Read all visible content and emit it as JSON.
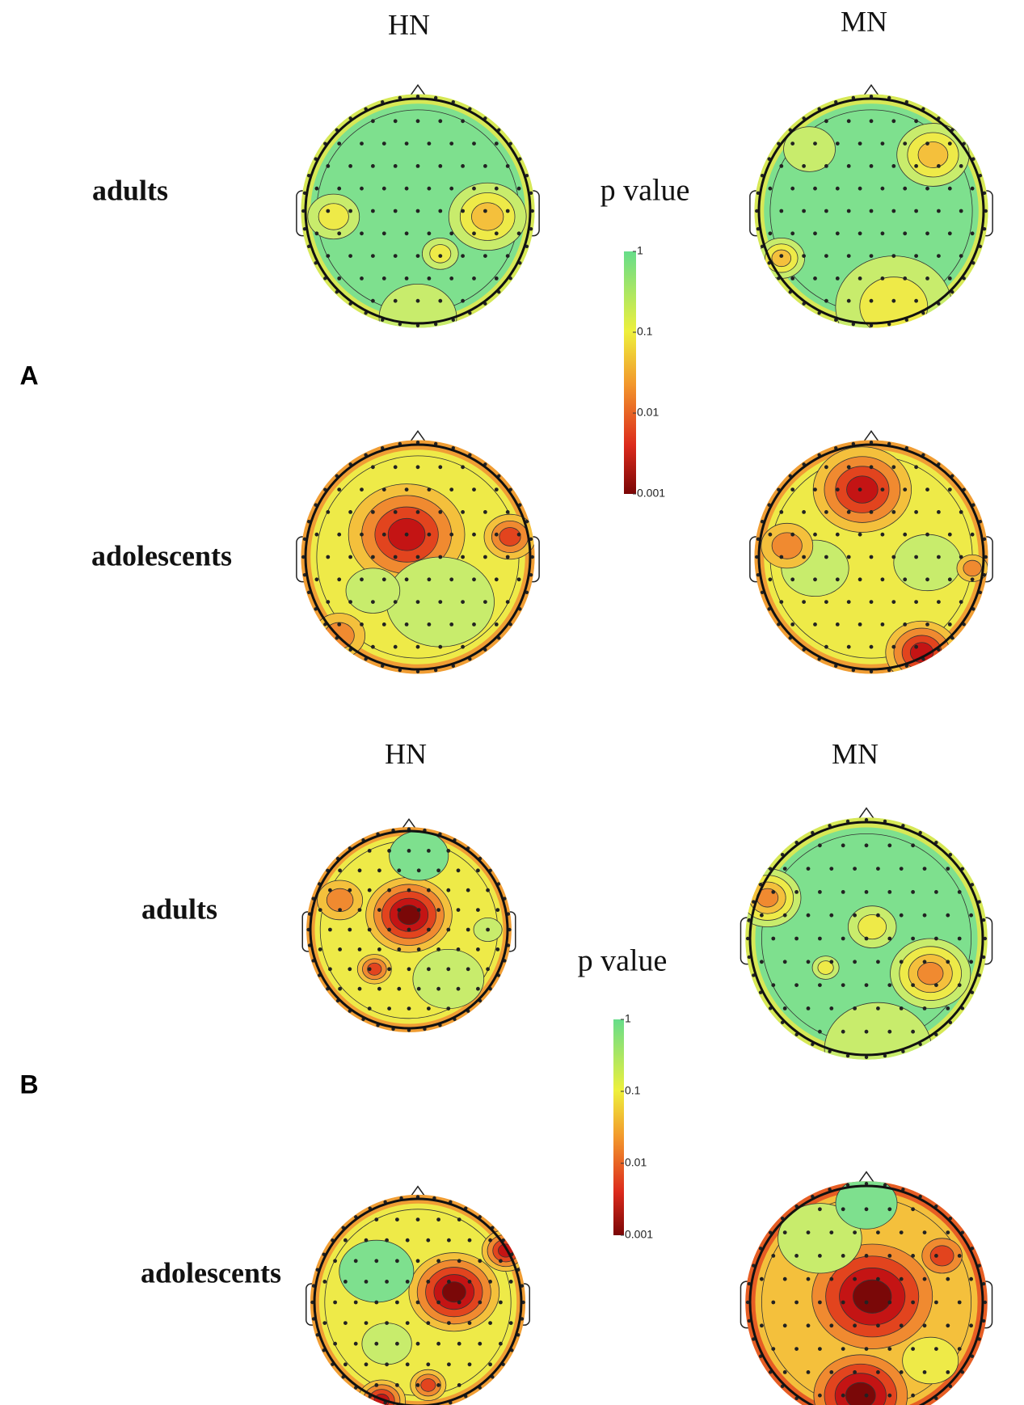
{
  "panels": [
    {
      "label": "A",
      "columns": [
        "HN",
        "MN"
      ],
      "rows": [
        "adults",
        "adolescents"
      ],
      "colorbar": {
        "title": "p value",
        "ticks": [
          1,
          0.1,
          0.01,
          0.001
        ]
      }
    },
    {
      "label": "B",
      "columns": [
        "HN",
        "MN"
      ],
      "rows": [
        "adults",
        "adolescents"
      ],
      "colorbar": {
        "title": "p value",
        "ticks": [
          1,
          0.1,
          0.01,
          0.001
        ]
      }
    }
  ]
}
